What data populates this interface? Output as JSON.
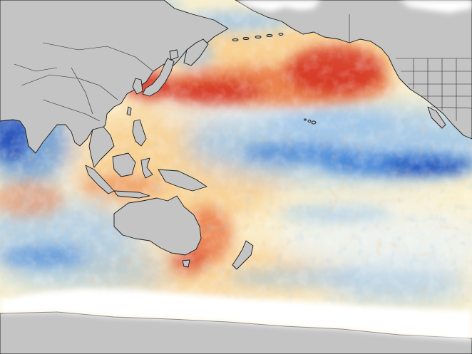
{
  "map": {
    "kind": "sea-surface-temperature-anomaly",
    "land_color": "#c4c4c4",
    "ice_color": "#ffffff",
    "coast_color": "#1a1a1a",
    "border_color": "#2a2a2a",
    "palette": {
      "strong_cold": "#0a3fb5",
      "cold": "#3d7fd6",
      "cool": "#9cc4ea",
      "neutral_cool": "#e8f2fa",
      "neutral_warm": "#fbf1cf",
      "warm": "#f6c37a",
      "hot": "#ea7d4a",
      "strong_hot": "#d4301f"
    },
    "features": [
      {
        "name": "north-pacific-warm-blob",
        "anomaly": "strong-warm"
      },
      {
        "name": "japan-coastal-warm",
        "anomaly": "strong-warm"
      },
      {
        "name": "equatorial-pacific-cold-tongue",
        "anomaly": "strong-cold"
      },
      {
        "name": "tasman-sea-warm",
        "anomaly": "warm"
      },
      {
        "name": "indian-ocean-cool",
        "anomaly": "cool"
      },
      {
        "name": "southern-ocean-mixed",
        "anomaly": "mixed"
      }
    ],
    "landmasses": [
      "asia",
      "australia",
      "north-america",
      "antarctica",
      "japan",
      "new-zealand",
      "new-guinea",
      "borneo",
      "sumatra",
      "philippines"
    ]
  }
}
